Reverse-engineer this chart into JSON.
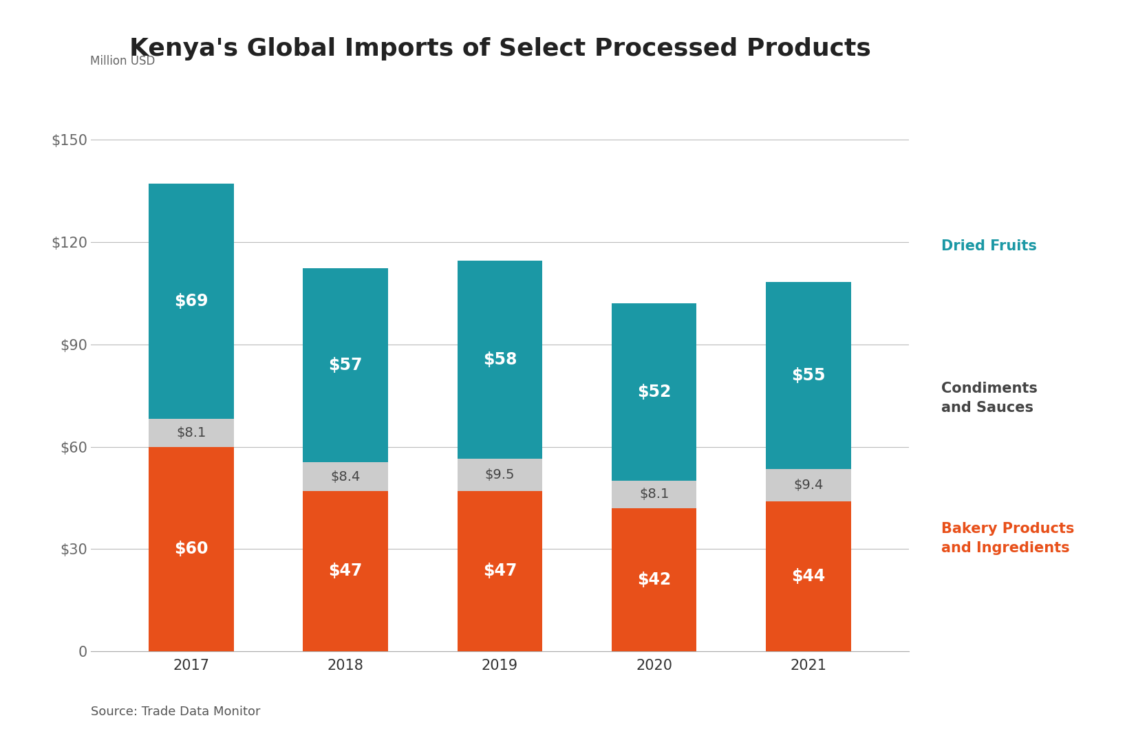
{
  "title": "Kenya's Global Imports of Select Processed Products",
  "source": "Source: Trade Data Monitor",
  "ylabel": "Million USD",
  "years": [
    "2017",
    "2018",
    "2019",
    "2020",
    "2021"
  ],
  "bakery": [
    60,
    47,
    47,
    42,
    44
  ],
  "condiments": [
    8.1,
    8.4,
    9.5,
    8.1,
    9.4
  ],
  "dried_fruits": [
    69,
    57,
    58,
    52,
    55
  ],
  "color_bakery": "#E8501A",
  "color_condiments": "#CCCCCC",
  "color_dried_fruits": "#1B98A5",
  "color_label_bakery": "#E8501A",
  "color_label_dried": "#1B98A5",
  "color_label_cond": "#444444",
  "ylim": [
    0,
    165
  ],
  "yticks": [
    0,
    30,
    60,
    90,
    120,
    150
  ],
  "ytick_labels": [
    "0",
    "$30",
    "$60",
    "$90",
    "$120",
    "$150"
  ],
  "bar_width": 0.55,
  "title_fontsize": 26,
  "tick_fontsize": 15,
  "annotation_fontsize": 17,
  "cond_annotation_fontsize": 14,
  "legend_fontsize": 15,
  "source_fontsize": 13,
  "ylabel_fontsize": 12,
  "background_color": "#FFFFFF"
}
